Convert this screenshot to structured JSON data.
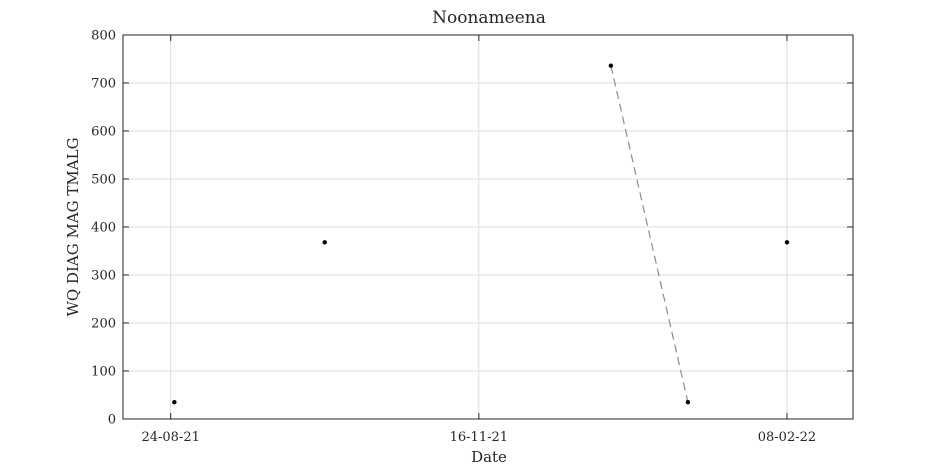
{
  "chart_data": {
    "type": "scatter",
    "title": "Noonameena",
    "xlabel": "Date",
    "ylabel": "WQ DIAG MAG TMALG",
    "x_ticks": [
      {
        "date": "2021-08-24",
        "label": "24-08-21"
      },
      {
        "date": "2021-11-16",
        "label": "16-11-21"
      },
      {
        "date": "2022-02-08",
        "label": "08-02-22"
      }
    ],
    "xlim": [
      "2021-08-11",
      "2022-02-26"
    ],
    "ylim": [
      0,
      800
    ],
    "y_ticks": [
      0,
      100,
      200,
      300,
      400,
      500,
      600,
      700,
      800
    ],
    "grid": true,
    "points": [
      {
        "date": "2021-08-25",
        "value": 35
      },
      {
        "date": "2021-10-05",
        "value": 368
      },
      {
        "date": "2021-12-22",
        "value": 736
      },
      {
        "date": "2022-01-12",
        "value": 35
      },
      {
        "date": "2022-02-08",
        "value": 368
      }
    ],
    "dashed_segment": [
      {
        "date": "2021-12-22",
        "value": 736
      },
      {
        "date": "2022-01-12",
        "value": 35
      }
    ],
    "colors": {
      "marker": "#000000",
      "dashed_line": "#8c8c8c",
      "grid": "#dcdcdc",
      "axes": "#262626"
    }
  }
}
